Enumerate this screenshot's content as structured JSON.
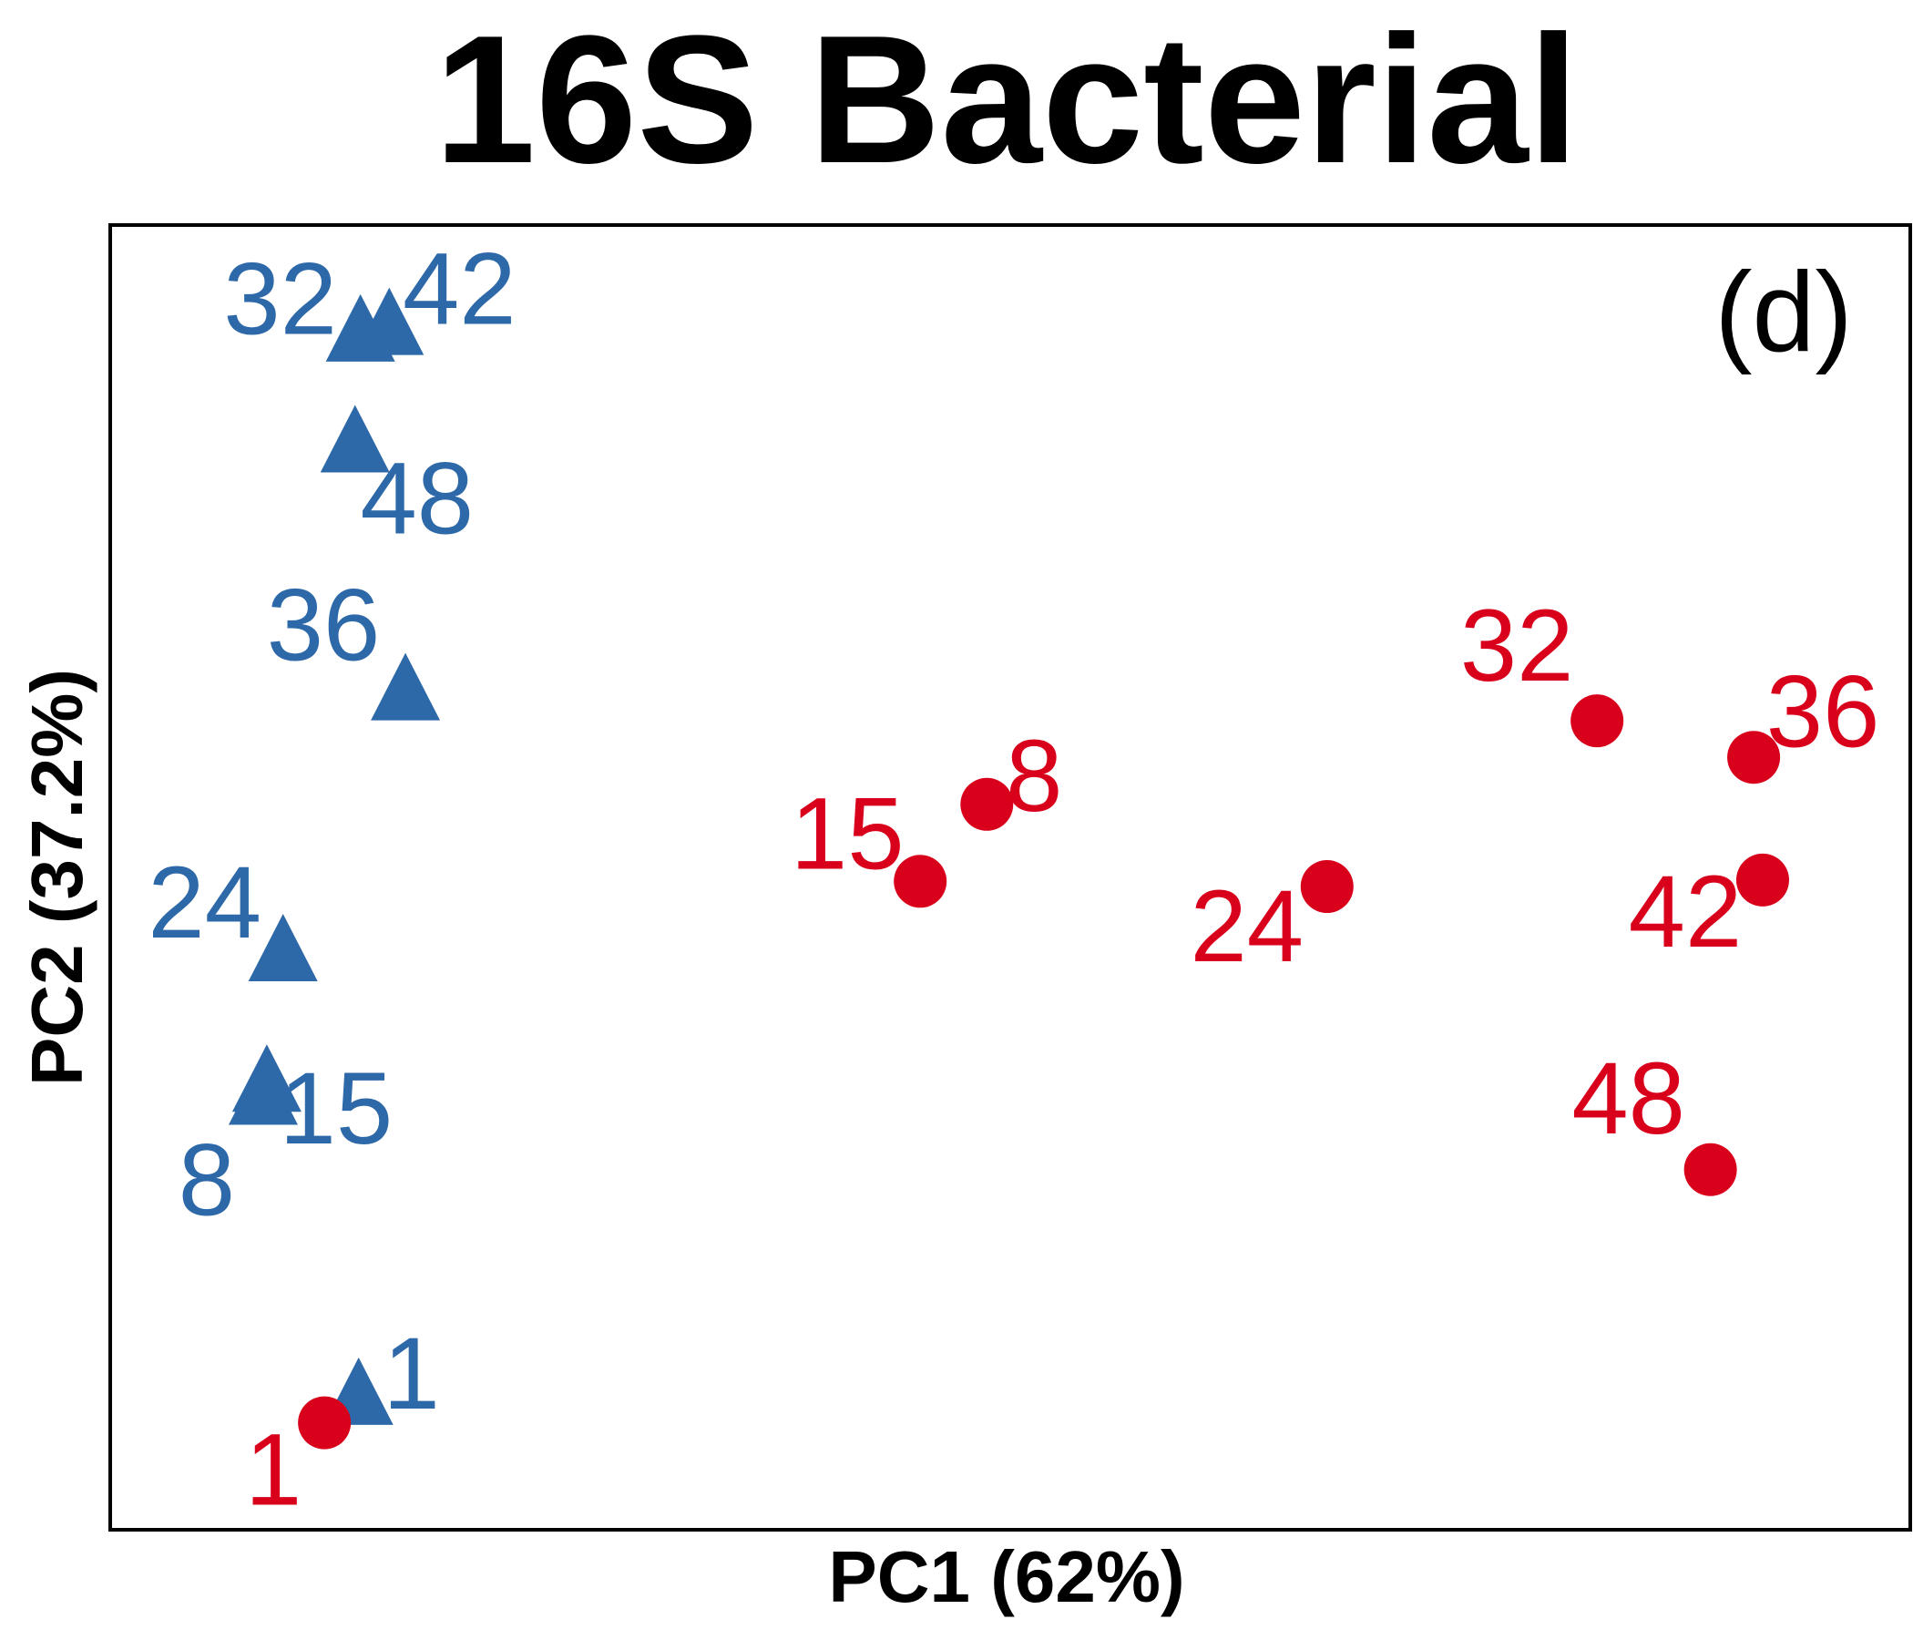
{
  "chart_data": {
    "type": "scatter",
    "title": "16S Bacterial",
    "panel_label": "(d)",
    "xlabel": "PC1 (62%)",
    "ylabel": "PC2 (37.2%)",
    "xlim": [
      0,
      100
    ],
    "ylim": [
      0,
      100
    ],
    "grid": false,
    "series": [
      {
        "marker": "triangle",
        "color": "#2d68a8",
        "points": [
          {
            "label": "1",
            "x": 13.8,
            "y": 10.0
          },
          {
            "label": "8",
            "x": 8.5,
            "y": 33.0
          },
          {
            "label": "15",
            "x": 8.7,
            "y": 34.0
          },
          {
            "label": "24",
            "x": 9.6,
            "y": 44.0
          },
          {
            "label": "36",
            "x": 16.4,
            "y": 64.0
          },
          {
            "label": "48",
            "x": 13.6,
            "y": 83.0
          },
          {
            "label": "32",
            "x": 13.9,
            "y": 91.5
          },
          {
            "label": "42",
            "x": 15.5,
            "y": 92.0
          }
        ]
      },
      {
        "marker": "circle",
        "color": "#d9001b",
        "points": [
          {
            "label": "1",
            "x": 11.9,
            "y": 8.2
          },
          {
            "label": "8",
            "x": 48.7,
            "y": 55.6
          },
          {
            "label": "15",
            "x": 45.0,
            "y": 49.7
          },
          {
            "label": "24",
            "x": 67.6,
            "y": 49.3
          },
          {
            "label": "32",
            "x": 82.6,
            "y": 62.0
          },
          {
            "label": "36",
            "x": 91.3,
            "y": 59.2
          },
          {
            "label": "42",
            "x": 91.8,
            "y": 49.8
          },
          {
            "label": "48",
            "x": 88.9,
            "y": 27.6
          }
        ]
      }
    ]
  }
}
